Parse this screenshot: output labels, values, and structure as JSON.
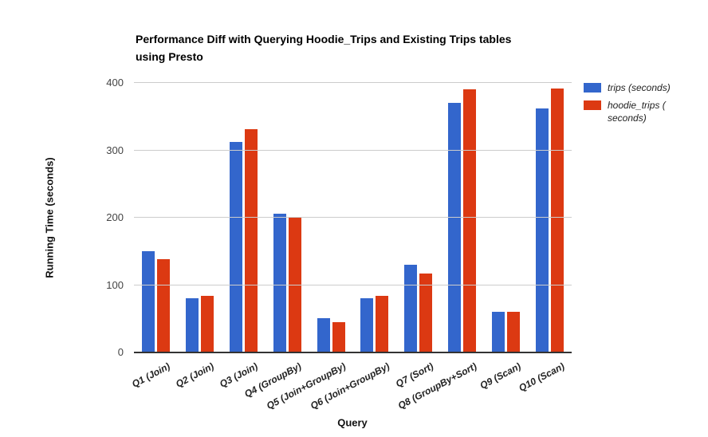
{
  "title": {
    "lines": [
      "Performance Diff with Querying Hoodie_Trips and Existing Trips tables",
      "using Presto"
    ]
  },
  "legend": {
    "items": [
      {
        "name": "trips (seconds)",
        "swatch_color": "#3366CC",
        "lines": [
          "trips (seconds)"
        ]
      },
      {
        "name": "hoodie_trips (seconds)",
        "swatch_color": "#DC3912",
        "lines": [
          "hoodie_trips (",
          "seconds)"
        ]
      }
    ]
  },
  "chart_data": {
    "type": "bar",
    "title": "Performance Diff with Querying Hoodie_Trips and Existing Trips tables using Presto",
    "xlabel": "Query",
    "ylabel": "Running Time (seconds)",
    "ylim": [
      0,
      400
    ],
    "yticks": [
      0,
      100,
      200,
      300,
      400
    ],
    "grid": true,
    "legend_position": "right",
    "categories": [
      "Q1 (Join)",
      "Q2 (Join)",
      "Q3 (Join)",
      "Q4 (GroupBy)",
      "Q5 (Join+GroupBy)",
      "Q6 (Join+GroupBy)",
      "Q7 (Sort)",
      "Q8 (GroupBy+Sort)",
      "Q9 (Scan)",
      "Q10 (Scan)"
    ],
    "series": [
      {
        "name": "trips (seconds)",
        "color": "#3366CC",
        "values": [
          150,
          80,
          312,
          206,
          51,
          80,
          130,
          370,
          61,
          362
        ]
      },
      {
        "name": "hoodie_trips (seconds)",
        "color": "#DC3912",
        "values": [
          138,
          84,
          331,
          201,
          45,
          84,
          117,
          390,
          60,
          392
        ]
      }
    ]
  }
}
